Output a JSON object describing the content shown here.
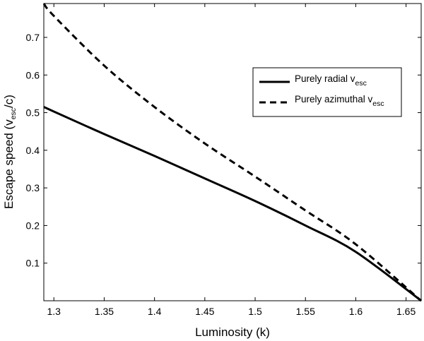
{
  "chart_data": {
    "type": "line",
    "xlabel": "Luminosity (k)",
    "ylabel_parts": [
      "Escape speed (v",
      "esc",
      "/c)"
    ],
    "xlim": [
      1.29,
      1.665
    ],
    "ylim": [
      0,
      0.79
    ],
    "xticks": [
      1.3,
      1.35,
      1.4,
      1.45,
      1.5,
      1.55,
      1.6,
      1.65
    ],
    "yticks": [
      0.1,
      0.2,
      0.3,
      0.4,
      0.5,
      0.6,
      0.7
    ],
    "grid": false,
    "legend_position": "top-right",
    "series": [
      {
        "name_main": "Purely radial v",
        "name_sub": "esc",
        "line_style": "solid",
        "color": "#000000",
        "x": [
          1.29,
          1.3,
          1.35,
          1.4,
          1.45,
          1.5,
          1.55,
          1.6,
          1.665
        ],
        "y": [
          0.515,
          0.503,
          0.443,
          0.385,
          0.325,
          0.265,
          0.2,
          0.13,
          0.0
        ]
      },
      {
        "name_main": "Purely azimuthal v",
        "name_sub": "esc",
        "line_style": "dashed",
        "color": "#000000",
        "x": [
          1.29,
          1.3,
          1.35,
          1.4,
          1.45,
          1.5,
          1.55,
          1.6,
          1.665
        ],
        "y": [
          0.79,
          0.757,
          0.625,
          0.515,
          0.418,
          0.33,
          0.24,
          0.15,
          0.0
        ]
      }
    ]
  }
}
